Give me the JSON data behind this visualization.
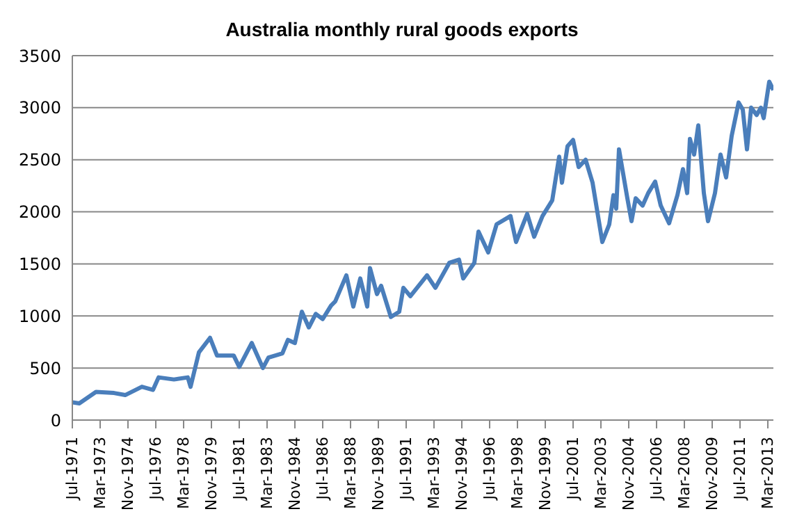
{
  "chart_data": {
    "type": "line",
    "title": "Australia monthly rural goods exports",
    "x": [
      "1971-07",
      "1971-12",
      "1972-12",
      "1974-01",
      "1974-09",
      "1975-09",
      "1976-05",
      "1976-09",
      "1977-08",
      "1978-06",
      "1978-08",
      "1979-02",
      "1979-10",
      "1980-03",
      "1981-03",
      "1981-07",
      "1982-04",
      "1982-12",
      "1983-04",
      "1984-02",
      "1984-06",
      "1984-11",
      "1985-04",
      "1985-09",
      "1986-02",
      "1986-07",
      "1987-01",
      "1987-04",
      "1987-12",
      "1988-05",
      "1988-10",
      "1989-03",
      "1989-05",
      "1989-10",
      "1990-01",
      "1990-08",
      "1991-02",
      "1991-05",
      "1991-10",
      "1992-10",
      "1993-04",
      "1994-02",
      "1994-09",
      "1994-12",
      "1995-08",
      "1995-11",
      "1996-06",
      "1996-12",
      "1997-10",
      "1998-02",
      "1998-10",
      "1999-03",
      "1999-09",
      "2000-04",
      "2000-09",
      "2000-11",
      "2001-03",
      "2001-07",
      "2001-11",
      "2002-04",
      "2002-09",
      "2003-04",
      "2003-09",
      "2003-12",
      "2004-02",
      "2004-04",
      "2004-10",
      "2005-01",
      "2005-04",
      "2005-09",
      "2006-01",
      "2006-06",
      "2006-10",
      "2007-04",
      "2007-10",
      "2008-02",
      "2008-05",
      "2008-07",
      "2008-10",
      "2009-01",
      "2009-05",
      "2009-08",
      "2010-01",
      "2010-05",
      "2010-09",
      "2011-01",
      "2011-06",
      "2011-09",
      "2011-12",
      "2012-03",
      "2012-07",
      "2012-10",
      "2012-12",
      "2013-04",
      "2013-07"
    ],
    "series": [
      {
        "color": "#4a7ebb",
        "values": [
          170,
          160,
          270,
          260,
          240,
          320,
          290,
          410,
          390,
          410,
          320,
          650,
          790,
          620,
          620,
          510,
          740,
          500,
          600,
          640,
          770,
          740,
          1040,
          890,
          1020,
          970,
          1100,
          1140,
          1390,
          1090,
          1360,
          1090,
          1460,
          1210,
          1290,
          990,
          1040,
          1270,
          1190,
          1390,
          1270,
          1510,
          1540,
          1360,
          1510,
          1810,
          1610,
          1880,
          1960,
          1710,
          1980,
          1760,
          1960,
          2110,
          2530,
          2280,
          2630,
          2690,
          2430,
          2500,
          2280,
          1710,
          1880,
          2160,
          2030,
          2600,
          2130,
          1910,
          2130,
          2060,
          2180,
          2290,
          2060,
          1890,
          2160,
          2410,
          2180,
          2700,
          2550,
          2830,
          2180,
          1910,
          2180,
          2550,
          2330,
          2730,
          3050,
          2980,
          2600,
          3000,
          2930,
          3000,
          2900,
          3250,
          3170
        ]
      }
    ],
    "xlim": [
      "1971-07",
      "2013-07"
    ],
    "xticks": [
      {
        "value": "1971-07",
        "label": "Jul-1971"
      },
      {
        "value": "1973-03",
        "label": "Mar-1973"
      },
      {
        "value": "1974-11",
        "label": "Nov-1974"
      },
      {
        "value": "1976-07",
        "label": "Jul-1976"
      },
      {
        "value": "1978-03",
        "label": "Mar-1978"
      },
      {
        "value": "1979-11",
        "label": "Nov-1979"
      },
      {
        "value": "1981-07",
        "label": "Jul-1981"
      },
      {
        "value": "1983-03",
        "label": "Mar-1983"
      },
      {
        "value": "1984-11",
        "label": "Nov-1984"
      },
      {
        "value": "1986-07",
        "label": "Jul-1986"
      },
      {
        "value": "1988-03",
        "label": "Mar-1988"
      },
      {
        "value": "1989-11",
        "label": "Nov-1989"
      },
      {
        "value": "1991-07",
        "label": "Jul-1991"
      },
      {
        "value": "1993-03",
        "label": "Mar-1993"
      },
      {
        "value": "1994-11",
        "label": "Nov-1994"
      },
      {
        "value": "1996-07",
        "label": "Jul-1996"
      },
      {
        "value": "1998-03",
        "label": "Mar-1998"
      },
      {
        "value": "1999-11",
        "label": "Nov-1999"
      },
      {
        "value": "2001-07",
        "label": "Jul-2001"
      },
      {
        "value": "2003-03",
        "label": "Mar-2003"
      },
      {
        "value": "2004-11",
        "label": "Nov-2004"
      },
      {
        "value": "2006-07",
        "label": "Jul-2006"
      },
      {
        "value": "2008-03",
        "label": "Mar-2008"
      },
      {
        "value": "2009-11",
        "label": "Nov-2009"
      },
      {
        "value": "2011-07",
        "label": "Jul-2011"
      },
      {
        "value": "2013-03",
        "label": "Mar-2013"
      }
    ],
    "ylim": [
      0,
      3500
    ],
    "yticks": [
      0,
      500,
      1000,
      1500,
      2000,
      2500,
      3000,
      3500
    ],
    "grid": "y",
    "marker": "none",
    "line_style": "solid"
  }
}
